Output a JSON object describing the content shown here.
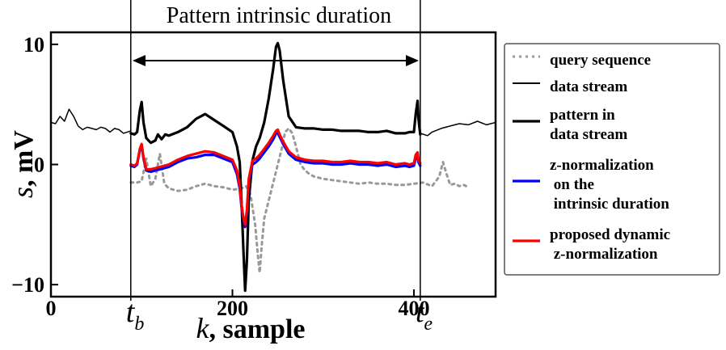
{
  "chart_data": {
    "type": "line",
    "title": "Pattern intrinsic duration",
    "xlabel": "k, sample",
    "xlabel_var": "k",
    "xlabel_unit": ", sample",
    "ylabel": "s, mV",
    "ylabel_var": "s",
    "ylabel_unit": ", mV",
    "xlim": [
      0,
      490
    ],
    "ylim": [
      -11,
      11
    ],
    "xticks": [
      0,
      200,
      400
    ],
    "xtick_labels": [
      "0",
      "200",
      "400"
    ],
    "yticks": [
      -10,
      0,
      10
    ],
    "ytick_labels": [
      "−10",
      "0",
      "10"
    ],
    "markers": {
      "tb": {
        "x": 88,
        "label": "t",
        "sub": "b"
      },
      "te": {
        "x": 407,
        "label": "t",
        "sub": "e"
      }
    },
    "legend_position": "right, outside plot",
    "series": [
      {
        "name": "query sequence",
        "color": "#999999",
        "style": "dotted",
        "x": [
          88,
          95,
          100,
          105,
          110,
          115,
          120,
          125,
          130,
          140,
          150,
          160,
          170,
          180,
          190,
          200,
          210,
          215,
          220,
          225,
          228,
          230,
          232,
          235,
          240,
          245,
          250,
          255,
          258,
          262,
          266,
          270,
          275,
          280,
          285,
          290,
          295,
          300,
          310,
          320,
          330,
          340,
          350,
          360,
          370,
          380,
          390,
          400,
          410,
          420,
          428,
          432,
          436,
          440,
          445,
          450,
          455,
          460
        ],
        "y": [
          -1.5,
          -1.5,
          -1.4,
          0.5,
          -1.8,
          -1.2,
          0.9,
          -1.6,
          -2.0,
          -2.2,
          -2.1,
          -1.8,
          -1.6,
          -1.8,
          -1.9,
          -2.1,
          -2.0,
          -1.8,
          -2.5,
          -5.0,
          -7.5,
          -9.0,
          -7.0,
          -4.5,
          -3.0,
          -1.5,
          0.0,
          1.5,
          2.7,
          3.0,
          2.6,
          1.5,
          0.0,
          -0.5,
          -0.8,
          -1.0,
          -1.1,
          -1.2,
          -1.3,
          -1.4,
          -1.5,
          -1.6,
          -1.5,
          -1.6,
          -1.6,
          -1.7,
          -1.7,
          -1.6,
          -1.5,
          -1.8,
          -1.0,
          0.2,
          -0.8,
          -1.7,
          -1.6,
          -1.8,
          -1.7,
          -1.9
        ]
      },
      {
        "name": "data stream",
        "color": "#000000",
        "style": "thin",
        "x": [
          0,
          5,
          10,
          15,
          20,
          25,
          30,
          35,
          40,
          45,
          50,
          55,
          60,
          65,
          70,
          75,
          80,
          88,
          407,
          415,
          420,
          430,
          440,
          450,
          460,
          470,
          480,
          490
        ],
        "y": [
          3.5,
          3.4,
          4.0,
          3.6,
          4.6,
          4.0,
          3.2,
          2.9,
          3.1,
          3.0,
          2.9,
          3.1,
          3.0,
          2.7,
          3.0,
          2.9,
          2.6,
          2.8,
          2.6,
          2.4,
          2.7,
          3.0,
          3.2,
          3.4,
          3.3,
          3.6,
          3.3,
          3.5
        ]
      },
      {
        "name": "pattern in data stream",
        "color": "#000000",
        "style": "thick",
        "x": [
          88,
          92,
          95,
          98,
          100,
          102,
          105,
          110,
          115,
          118,
          122,
          126,
          130,
          140,
          150,
          160,
          170,
          180,
          190,
          200,
          205,
          208,
          210,
          212,
          214,
          216,
          218,
          222,
          226,
          230,
          235,
          240,
          245,
          248,
          250,
          252,
          256,
          262,
          270,
          280,
          290,
          300,
          310,
          320,
          330,
          340,
          350,
          360,
          370,
          380,
          390,
          395,
          400,
          402,
          404,
          405,
          407
        ],
        "y": [
          2.6,
          2.5,
          2.7,
          4.5,
          5.2,
          3.5,
          2.2,
          1.8,
          2.0,
          2.5,
          2.1,
          2.5,
          2.4,
          2.7,
          3.1,
          3.8,
          4.2,
          3.7,
          3.2,
          2.7,
          1.5,
          0.2,
          -3.0,
          -7.0,
          -10.5,
          -8.0,
          -3.0,
          0.3,
          1.5,
          2.2,
          3.5,
          5.5,
          8.0,
          9.8,
          10.1,
          9.5,
          7.0,
          4.0,
          3.1,
          3.0,
          3.0,
          2.9,
          2.9,
          2.8,
          2.8,
          2.8,
          2.7,
          2.7,
          2.8,
          2.6,
          2.6,
          2.7,
          2.7,
          4.2,
          5.3,
          3.8,
          2.5
        ]
      },
      {
        "name": "z-normalization on the intrinsic duration",
        "color": "#0000ff",
        "style": "thick",
        "x": [
          88,
          92,
          95,
          98,
          100,
          102,
          105,
          110,
          115,
          120,
          125,
          130,
          140,
          150,
          160,
          170,
          180,
          190,
          200,
          205,
          208,
          210,
          212,
          214,
          216,
          218,
          222,
          226,
          230,
          235,
          240,
          245,
          248,
          250,
          252,
          256,
          262,
          270,
          280,
          290,
          300,
          310,
          320,
          330,
          340,
          350,
          360,
          370,
          380,
          390,
          395,
          400,
          402,
          404,
          405,
          407
        ],
        "y": [
          -0.1,
          -0.2,
          0.0,
          1.2,
          1.6,
          0.5,
          -0.5,
          -0.6,
          -0.5,
          -0.4,
          -0.3,
          -0.2,
          0.2,
          0.5,
          0.6,
          0.8,
          0.8,
          0.5,
          0.2,
          -0.8,
          -2.0,
          -3.5,
          -4.5,
          -5.2,
          -4.0,
          -1.5,
          0.0,
          0.2,
          0.5,
          1.0,
          1.5,
          2.1,
          2.6,
          2.6,
          2.3,
          1.7,
          0.9,
          0.4,
          0.2,
          0.1,
          0.1,
          0.0,
          0.0,
          0.1,
          0.0,
          0.0,
          -0.1,
          0.0,
          -0.2,
          -0.1,
          -0.2,
          -0.1,
          0.5,
          0.8,
          0.2,
          -0.1
        ]
      },
      {
        "name": "proposed dynamic z-normalization",
        "color": "#ff0000",
        "style": "thick",
        "x": [
          88,
          92,
          95,
          98,
          100,
          102,
          105,
          110,
          115,
          120,
          125,
          130,
          140,
          150,
          160,
          170,
          180,
          190,
          200,
          205,
          208,
          210,
          212,
          214,
          216,
          218,
          222,
          226,
          230,
          235,
          240,
          245,
          248,
          250,
          252,
          256,
          262,
          270,
          280,
          290,
          300,
          310,
          320,
          330,
          340,
          350,
          360,
          370,
          380,
          390,
          395,
          400,
          402,
          404,
          405,
          407
        ],
        "y": [
          0.0,
          -0.1,
          0.1,
          1.3,
          1.7,
          0.6,
          -0.4,
          -0.4,
          -0.3,
          -0.2,
          -0.1,
          0.0,
          0.4,
          0.7,
          0.9,
          1.1,
          1.0,
          0.7,
          0.4,
          -0.5,
          -1.8,
          -3.3,
          -4.4,
          -5.0,
          -3.8,
          -1.2,
          0.3,
          0.5,
          0.8,
          1.3,
          1.8,
          2.4,
          2.8,
          2.9,
          2.5,
          1.9,
          1.1,
          0.6,
          0.4,
          0.3,
          0.3,
          0.2,
          0.2,
          0.3,
          0.2,
          0.2,
          0.1,
          0.2,
          0.0,
          0.1,
          0.0,
          0.1,
          0.8,
          1.0,
          0.4,
          0.1
        ]
      }
    ],
    "legend": [
      {
        "lines": [
          "query sequence"
        ],
        "series": 0
      },
      {
        "lines": [
          "data stream"
        ],
        "series": 1
      },
      {
        "lines": [
          "pattern in",
          "data stream"
        ],
        "series": 2
      },
      {
        "lines": [
          "z-normalization",
          " on the",
          " intrinsic duration"
        ],
        "series": 3
      },
      {
        "lines": [
          "proposed dynamic",
          " z-normalization"
        ],
        "series": 4
      }
    ]
  }
}
